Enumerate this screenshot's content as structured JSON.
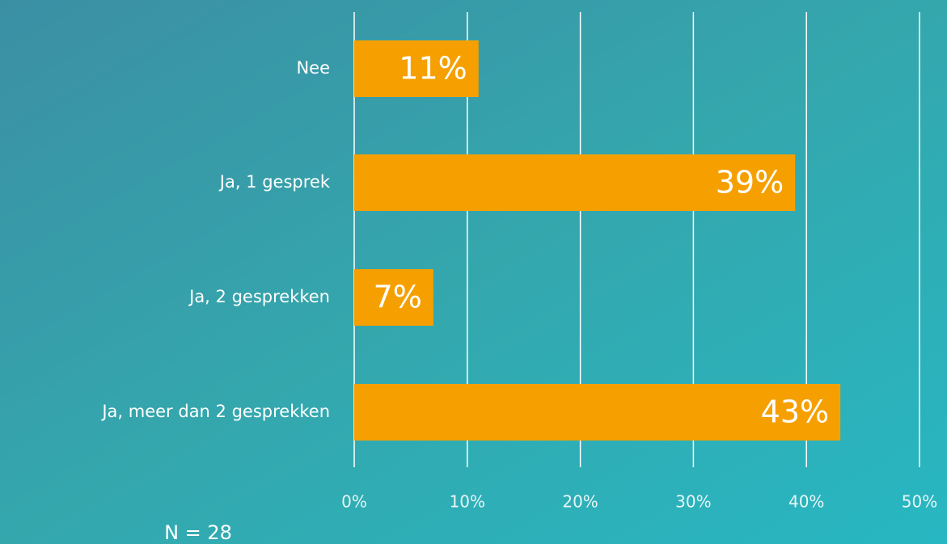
{
  "chart_data": {
    "type": "hbar",
    "categories": [
      "Nee",
      "Ja, 1 gesprek",
      "Ja, 2 gesprekken",
      "Ja, meer dan 2 gesprekken"
    ],
    "values": [
      11,
      39,
      7,
      43
    ],
    "value_labels": [
      "11%",
      "39%",
      "7%",
      "43%"
    ],
    "color": "#f5a000",
    "xlim": [
      0,
      50
    ],
    "xticks": [
      {
        "value": 0,
        "label": "0%"
      },
      {
        "value": 10,
        "label": "10%"
      },
      {
        "value": 20,
        "label": "20%"
      },
      {
        "value": 30,
        "label": "30%"
      },
      {
        "value": 40,
        "label": "40%"
      },
      {
        "value": 50,
        "label": "50%"
      }
    ],
    "grid": true,
    "annotation": "N = 28"
  }
}
